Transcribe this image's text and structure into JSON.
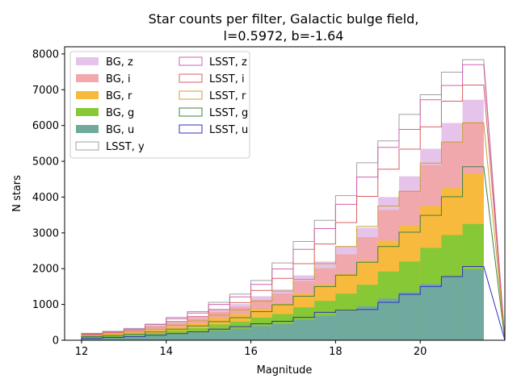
{
  "chart_data": {
    "type": "histogram",
    "title_line1": "Star counts per filter, Galactic bulge field,",
    "title_line2": "l=0.5972, b=-1.64",
    "xlabel": "Magnitude",
    "ylabel": "N stars",
    "xlim": [
      11.6,
      22.0
    ],
    "ylim": [
      0,
      8200
    ],
    "xticks": [
      12,
      14,
      16,
      18,
      20
    ],
    "yticks": [
      0,
      1000,
      2000,
      3000,
      4000,
      5000,
      6000,
      7000,
      8000
    ],
    "bin_edges": [
      12.0,
      12.5,
      13.0,
      13.5,
      14.0,
      14.5,
      15.0,
      15.5,
      16.0,
      16.5,
      17.0,
      17.5,
      18.0,
      18.5,
      19.0,
      19.5,
      20.0,
      20.5,
      21.0,
      21.5
    ],
    "legend_position": "upper-left",
    "filled_series": [
      {
        "name": "BG, z",
        "color": "#e6c3ea",
        "values": [
          165,
          205,
          280,
          380,
          530,
          670,
          860,
          1010,
          1230,
          1420,
          1810,
          2200,
          2620,
          3140,
          4000,
          4580,
          5350,
          6070,
          6720
        ]
      },
      {
        "name": "BG, i",
        "color": "#f0a8ac",
        "values": [
          150,
          190,
          260,
          350,
          480,
          610,
          790,
          930,
          1130,
          1310,
          1660,
          2010,
          2400,
          2880,
          3640,
          4180,
          4900,
          5540,
          6100
        ]
      },
      {
        "name": "BG, r",
        "color": "#f8ba3c",
        "values": [
          120,
          155,
          210,
          280,
          380,
          480,
          620,
          730,
          880,
          1020,
          1300,
          1560,
          1850,
          2220,
          2780,
          3200,
          3750,
          4250,
          4650
        ]
      },
      {
        "name": "BG, g",
        "color": "#86c836",
        "values": [
          90,
          115,
          150,
          200,
          270,
          340,
          440,
          520,
          630,
          730,
          920,
          1100,
          1300,
          1550,
          1920,
          2200,
          2580,
          2940,
          3250
        ]
      },
      {
        "name": "BG, u",
        "color": "#70aa9e",
        "values": [
          55,
          70,
          95,
          125,
          165,
          210,
          270,
          320,
          390,
          450,
          570,
          680,
          800,
          950,
          1170,
          1340,
          1570,
          1780,
          1980
        ]
      }
    ],
    "step_series": [
      {
        "name": "LSST, y",
        "color": "#a0a0a0",
        "values": [
          195,
          250,
          330,
          450,
          640,
          800,
          1060,
          1290,
          1670,
          2160,
          2760,
          3350,
          4040,
          4960,
          5570,
          6310,
          6860,
          7490,
          7840
        ]
      },
      {
        "name": "LSST, z",
        "color": "#d060b0",
        "values": [
          180,
          230,
          310,
          430,
          600,
          760,
          1000,
          1210,
          1560,
          1990,
          2540,
          3120,
          3800,
          4560,
          5390,
          5890,
          6720,
          7120,
          7700
        ]
      },
      {
        "name": "LSST, i",
        "color": "#d96060",
        "values": [
          160,
          210,
          280,
          380,
          520,
          660,
          860,
          1050,
          1390,
          1730,
          2140,
          2690,
          3290,
          4020,
          4780,
          5340,
          5960,
          6680,
          7130
        ]
      },
      {
        "name": "LSST, r",
        "color": "#c8a030",
        "values": [
          135,
          170,
          230,
          310,
          420,
          540,
          700,
          850,
          1090,
          1370,
          1700,
          2140,
          2620,
          3180,
          3750,
          4160,
          4950,
          5540,
          6070
        ]
      },
      {
        "name": "LSST, g",
        "color": "#408040",
        "values": [
          100,
          125,
          170,
          230,
          310,
          400,
          520,
          630,
          800,
          990,
          1230,
          1500,
          1820,
          2180,
          2620,
          3020,
          3490,
          4010,
          4850
        ]
      },
      {
        "name": "LSST, u",
        "color": "#3030c0",
        "values": [
          60,
          80,
          105,
          140,
          185,
          235,
          310,
          380,
          460,
          530,
          640,
          780,
          840,
          860,
          1060,
          1280,
          1500,
          1780,
          2060
        ]
      }
    ],
    "legend_col1": [
      "BG, z",
      "BG, i",
      "BG, r",
      "BG, g",
      "BG, u",
      "LSST, y"
    ],
    "legend_col2": [
      "LSST, z",
      "LSST, i",
      "LSST, r",
      "LSST, g",
      "LSST, u"
    ]
  }
}
